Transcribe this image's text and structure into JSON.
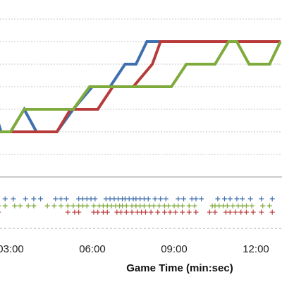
{
  "chart_data": {
    "type": "line",
    "title": "",
    "xlabel": "Game Time (min:sec)",
    "ylabel": "",
    "x_unit": "minutes",
    "x_ticks": [
      {
        "value": 3,
        "label": "03:00"
      },
      {
        "value": 6,
        "label": "06:00"
      },
      {
        "value": 9,
        "label": "09:00"
      },
      {
        "value": 12,
        "label": "12:00"
      }
    ],
    "xlim": [
      2.4,
      12.9
    ],
    "ylim": [
      0,
      7
    ],
    "grid": true,
    "legend": "none",
    "colors": {
      "blue": "#3f6fae",
      "red": "#b83b3b",
      "green": "#7faa3c",
      "grid": "#c8c8c8",
      "axis": "#999999"
    },
    "series": [
      {
        "color": "blue",
        "points": [
          [
            2.4,
            3
          ],
          [
            2.65,
            2
          ],
          [
            3.0,
            2
          ],
          [
            3.5,
            3
          ],
          [
            3.95,
            2
          ],
          [
            4.7,
            2
          ],
          [
            5.3,
            3
          ],
          [
            6.0,
            4
          ],
          [
            6.65,
            4
          ],
          [
            7.2,
            5
          ],
          [
            7.6,
            5
          ],
          [
            8.0,
            6
          ],
          [
            9.0,
            6
          ],
          [
            10.5,
            6
          ],
          [
            12.9,
            6
          ]
        ]
      },
      {
        "color": "red",
        "points": [
          [
            2.4,
            2
          ],
          [
            3.0,
            2
          ],
          [
            4.0,
            2
          ],
          [
            4.7,
            2
          ],
          [
            5.2,
            3
          ],
          [
            6.2,
            3
          ],
          [
            6.75,
            4
          ],
          [
            7.5,
            4
          ],
          [
            8.2,
            5
          ],
          [
            8.5,
            6
          ],
          [
            10.5,
            6
          ],
          [
            12.9,
            6
          ]
        ]
      },
      {
        "color": "green",
        "points": [
          [
            2.4,
            2
          ],
          [
            3.0,
            2
          ],
          [
            3.5,
            3
          ],
          [
            4.6,
            3
          ],
          [
            5.3,
            3
          ],
          [
            5.9,
            4
          ],
          [
            6.3,
            4
          ],
          [
            6.65,
            4
          ],
          [
            7.2,
            4
          ],
          [
            8.3,
            4
          ],
          [
            8.9,
            4
          ],
          [
            9.45,
            5
          ],
          [
            10.5,
            5
          ],
          [
            11.0,
            6
          ],
          [
            11.3,
            6
          ],
          [
            11.75,
            5
          ],
          [
            12.0,
            5
          ],
          [
            12.5,
            5
          ],
          [
            12.9,
            6
          ]
        ]
      }
    ],
    "events": [
      {
        "color": "blue",
        "x": [
          2.45,
          2.8,
          3.1,
          3.55,
          3.85,
          4.1,
          4.65,
          4.85,
          5.05,
          5.5,
          5.65,
          5.8,
          5.95,
          6.1,
          6.5,
          6.65,
          6.8,
          6.95,
          7.1,
          7.2,
          7.35,
          7.5,
          7.6,
          7.75,
          7.9,
          8.05,
          8.3,
          8.5,
          8.7,
          9.15,
          9.35,
          9.65,
          9.8,
          10.0,
          10.6,
          10.85,
          11.05,
          11.3,
          11.5,
          11.8,
          12.2,
          12.6
        ]
      },
      {
        "color": "green",
        "x": [
          2.55,
          2.8,
          3.15,
          3.35,
          3.65,
          3.85,
          4.35,
          4.6,
          4.85,
          5.1,
          5.3,
          5.5,
          5.65,
          5.8,
          6.05,
          6.25,
          6.4,
          6.55,
          6.7,
          6.85,
          7.0,
          7.1,
          7.25,
          7.45,
          7.6,
          7.75,
          7.9,
          8.1,
          8.25,
          8.45,
          8.65,
          8.8,
          9.0,
          9.15,
          9.3,
          9.55,
          9.75,
          10.4,
          10.5,
          10.65,
          10.8,
          10.95,
          11.15,
          11.35,
          11.5,
          11.65,
          11.85,
          12.25,
          12.5
        ]
      },
      {
        "color": "red",
        "x": [
          2.55,
          5.1,
          5.35,
          5.5,
          6.05,
          6.2,
          6.4,
          6.55,
          6.9,
          7.05,
          7.25,
          7.45,
          7.65,
          7.8,
          7.95,
          8.15,
          8.4,
          8.65,
          8.85,
          9.05,
          9.3,
          9.55,
          9.8,
          10.3,
          10.5,
          10.9,
          11.05,
          11.25,
          11.45,
          11.65,
          11.9,
          12.2,
          12.6
        ]
      }
    ]
  }
}
